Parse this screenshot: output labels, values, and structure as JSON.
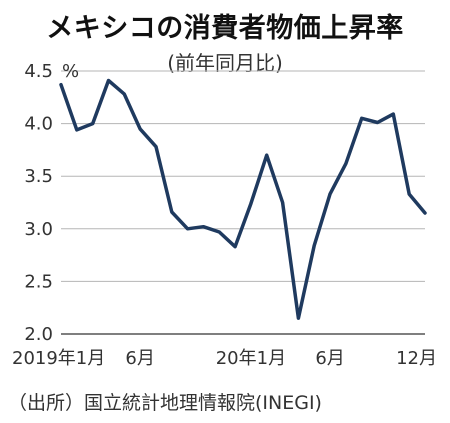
{
  "title": "メキシコの消費者物価上昇率",
  "subtitle": "(前年同月比)",
  "source": "（出所）国立統計地理情報院(INEGI)",
  "chart_data": {
    "type": "line",
    "title": "メキシコの消費者物価上昇率",
    "subtitle": "(前年同月比)",
    "ylabel": "%",
    "xlabel": "",
    "ylim": [
      2.0,
      4.5
    ],
    "yticks": [
      "2.0",
      "2.5",
      "3.0",
      "3.5",
      "4.0",
      "4.5"
    ],
    "ytick_values": [
      2.0,
      2.5,
      3.0,
      3.5,
      4.0,
      4.5
    ],
    "grid": true,
    "line_color": "#1f3a5f",
    "x": [
      "2019-01",
      "2019-02",
      "2019-03",
      "2019-04",
      "2019-05",
      "2019-06",
      "2019-07",
      "2019-08",
      "2019-09",
      "2019-10",
      "2019-11",
      "2019-12",
      "2020-01",
      "2020-02",
      "2020-03",
      "2020-04",
      "2020-05",
      "2020-06",
      "2020-07",
      "2020-08",
      "2020-09",
      "2020-10",
      "2020-11",
      "2020-12"
    ],
    "xtick_labels": [
      {
        "index": 0,
        "label": "2019年1月"
      },
      {
        "index": 5,
        "label": "6月"
      },
      {
        "index": 12,
        "label": "20年1月"
      },
      {
        "index": 17,
        "label": "6月"
      },
      {
        "index": 23,
        "label": "12月"
      }
    ],
    "series": [
      {
        "values": [
          4.37,
          3.94,
          4.0,
          4.41,
          4.28,
          3.95,
          3.78,
          3.16,
          3.0,
          3.02,
          2.97,
          2.83,
          3.24,
          3.7,
          3.25,
          2.15,
          2.84,
          3.33,
          3.62,
          4.05,
          4.01,
          4.09,
          3.33,
          3.15
        ]
      }
    ]
  }
}
